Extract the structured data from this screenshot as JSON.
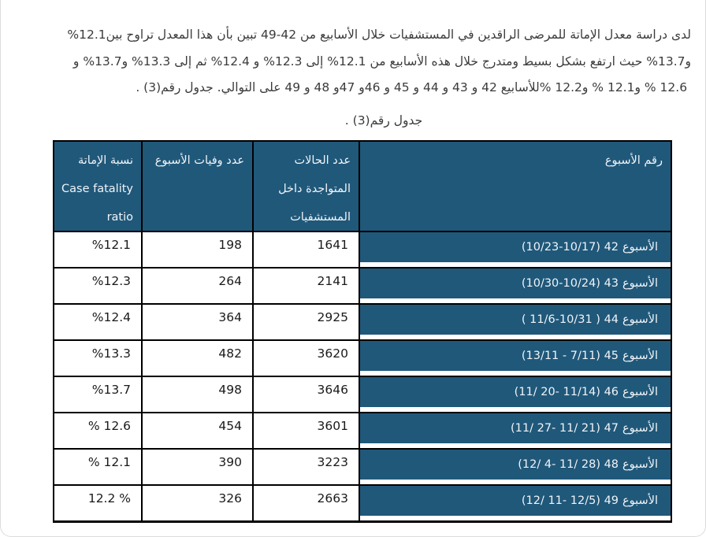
{
  "colors": {
    "table_blue": "#20587a",
    "border_black": "#000000",
    "header_text": "#f0f4f7",
    "body_text": "#1a1a1a",
    "paragraph_text": "#3b3b3b"
  },
  "paragraph": {
    "lines": [
      {
        "segments": [
          {
            "d": "rtl",
            "t": "لدى دراسة معدل الإماتة للمرضى الراقدين في المستشفيات خلال الأسابيع من"
          },
          {
            "d": "ltr",
            "t": " 49-42 "
          },
          {
            "d": "rtl",
            "t": "تبين بأن هذا المعدل تراوح بين"
          },
          {
            "d": "ltr",
            "t": " %12.1"
          }
        ]
      },
      {
        "segments": [
          {
            "d": "rtl",
            "t": "و"
          },
          {
            "d": "ltr",
            "t": "%13.7"
          },
          {
            "d": "rtl",
            "t": " حيث ارتفع بشكل بسيط ومتدرج خلال هذه الأسابيع من"
          },
          {
            "d": "ltr",
            "t": " %12.1 "
          },
          {
            "d": "rtl",
            "t": "إلى"
          },
          {
            "d": "ltr",
            "t": " %12.3 "
          },
          {
            "d": "rtl",
            "t": "و"
          },
          {
            "d": "ltr",
            "t": " %12.4 "
          },
          {
            "d": "rtl",
            "t": "ثم إلى"
          },
          {
            "d": "ltr",
            "t": " %13.3 "
          },
          {
            "d": "rtl",
            "t": "و"
          },
          {
            "d": "ltr",
            "t": "%13.7"
          },
          {
            "d": "rtl",
            "t": " و"
          }
        ]
      },
      {
        "segments": [
          {
            "d": "ltr",
            "t": "% 12.6 "
          },
          {
            "d": "ltr",
            "t": " % 12.1و "
          },
          {
            "d": "ltr",
            "t": " % 12.2و "
          },
          {
            "d": "rtl",
            "t": "للأسابيع"
          },
          {
            "d": "ltr",
            "t": " 42 "
          },
          {
            "d": "rtl",
            "t": "و"
          },
          {
            "d": "ltr",
            "t": " 43 "
          },
          {
            "d": "rtl",
            "t": "و"
          },
          {
            "d": "ltr",
            "t": " 44 "
          },
          {
            "d": "rtl",
            "t": "و"
          },
          {
            "d": "ltr",
            "t": " 45 "
          },
          {
            "d": "rtl",
            "t": "و"
          },
          {
            "d": "ltr",
            "t": "46 "
          },
          {
            "d": "rtl",
            "t": "و"
          },
          {
            "d": "ltr",
            "t": "47 "
          },
          {
            "d": "rtl",
            "t": "و"
          },
          {
            "d": "ltr",
            "t": " 48 "
          },
          {
            "d": "rtl",
            "t": "و"
          },
          {
            "d": "ltr",
            "t": " 49 "
          },
          {
            "d": "rtl",
            "t": "على التوالي. جدول رقم"
          },
          {
            "d": "ltr",
            "t": " (3)"
          },
          {
            "d": "rtl",
            "t": "."
          }
        ]
      }
    ]
  },
  "caption": {
    "segments": [
      {
        "d": "rtl",
        "t": "جدول رقم"
      },
      {
        "d": "ltr",
        "t": " (3)"
      },
      {
        "d": "rtl",
        "t": "."
      }
    ]
  },
  "table": {
    "header": {
      "fatality_lines": [
        "نسبة الإماتة",
        "Case fatality",
        "ratio"
      ],
      "deaths_lines": [
        "عدد وفيات الأسبوع"
      ],
      "cases_lines": [
        "عدد الحالات",
        "المتواجدة داخل",
        "المستشفيات"
      ],
      "week_lines": [
        "رقم الأسبوع"
      ]
    },
    "rows": [
      {
        "fatality": "%12.1",
        "deaths": "198",
        "cases": "1641",
        "week_word": "الأسبوع",
        "week_dates": "(10/23-10/17) 42"
      },
      {
        "fatality": "%12.3",
        "deaths": "264",
        "cases": "2141",
        "week_word": "الأسبوع",
        "week_dates": "(10/30-10/24) 43"
      },
      {
        "fatality": "%12.4",
        "deaths": "364",
        "cases": "2925",
        "week_word": "الأسبوع",
        "week_dates": "( 11/6-10/31 ) 44"
      },
      {
        "fatality": "%13.3",
        "deaths": "482",
        "cases": "3620",
        "week_word": "الأسبوع",
        "week_dates": "(13/11 - 7/11) 45"
      },
      {
        "fatality": "%13.7",
        "deaths": "498",
        "cases": "3646",
        "week_word": "الأسبوع",
        "week_dates": "(11/ 20- 11/14) 46"
      },
      {
        "fatality": "% 12.6",
        "deaths": "454",
        "cases": "3601",
        "week_word": "الأسبوع",
        "week_dates": "(11/ 27- 11/ 21) 47"
      },
      {
        "fatality": "% 12.1",
        "deaths": "390",
        "cases": "3223",
        "week_word": "الأسبوع",
        "week_dates": "(12/ 4- 11/ 28) 48"
      },
      {
        "fatality": "12.2 %",
        "deaths": "326",
        "cases": "2663",
        "week_word": "الأسبوع",
        "week_dates": "(12/ 11- 12/5) 49"
      }
    ]
  }
}
